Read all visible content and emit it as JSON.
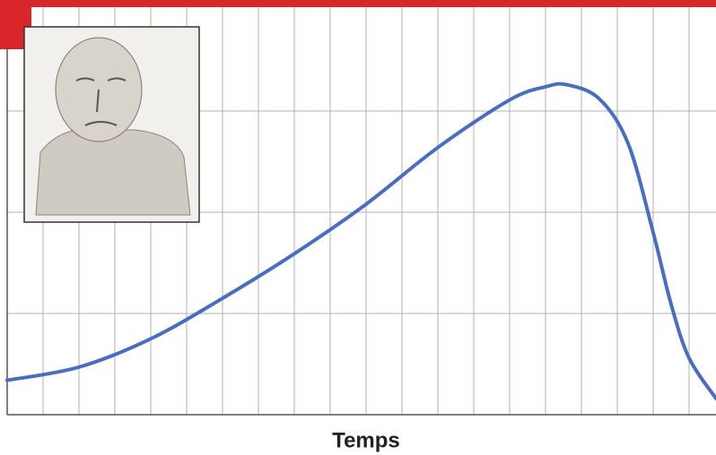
{
  "chart_data": {
    "type": "line",
    "x_label": "Temps",
    "x": [
      0,
      2,
      4,
      6,
      8,
      10,
      12,
      14,
      15,
      15.6,
      16.5,
      17.3,
      18,
      18.5,
      19,
      19.75
    ],
    "series": [
      {
        "color": "#4a6ebf",
        "values": [
          0.34,
          0.47,
          0.75,
          1.15,
          1.59,
          2.08,
          2.64,
          3.11,
          3.24,
          3.26,
          3.12,
          2.68,
          1.8,
          1.09,
          0.56,
          0.16
        ]
      }
    ],
    "xlim": [
      0,
      19.75
    ],
    "ylim": [
      0,
      4
    ],
    "xticks": [
      1,
      2,
      3,
      4,
      5,
      6,
      7,
      8,
      9,
      10,
      11,
      12,
      13,
      14,
      15,
      16,
      17,
      18,
      19
    ],
    "yticks": [
      1,
      2,
      3
    ],
    "grid": true
  }
}
